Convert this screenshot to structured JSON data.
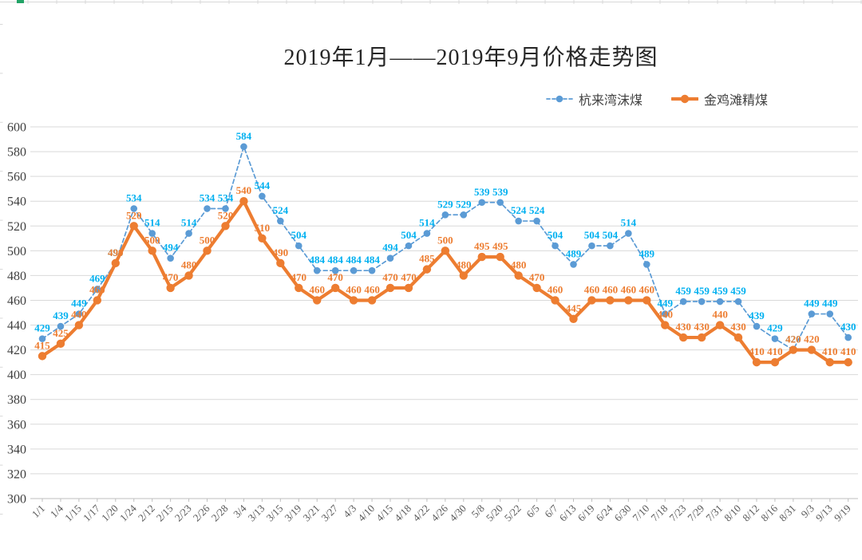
{
  "page": {
    "title": "2019年1月——2019年9月价格走势图"
  },
  "chart_data": {
    "type": "line",
    "title": "2019年1月——2019年9月价格走势图",
    "xlabel": "",
    "ylabel": "",
    "ylim": [
      300,
      600
    ],
    "ytick_step": 20,
    "yticks": [
      300,
      320,
      340,
      360,
      380,
      400,
      420,
      440,
      460,
      480,
      500,
      520,
      540,
      560,
      580,
      600
    ],
    "grid": true,
    "data_labels": true,
    "legend_position": "top-right",
    "categories": [
      "1/1",
      "1/4",
      "1/15",
      "1/17",
      "1/20",
      "1/24",
      "2/12",
      "2/15",
      "2/23",
      "2/26",
      "2/28",
      "3/4",
      "3/13",
      "3/15",
      "3/19",
      "3/21",
      "3/27",
      "4/3",
      "4/10",
      "4/15",
      "4/18",
      "4/22",
      "4/26",
      "4/30",
      "5/8",
      "5/20",
      "5/22",
      "6/5",
      "6/7",
      "6/13",
      "6/19",
      "6/24",
      "6/30",
      "7/10",
      "7/18",
      "7/23",
      "7/29",
      "7/31",
      "8/10",
      "8/12",
      "8/16",
      "8/31",
      "9/3",
      "9/13",
      "9/19"
    ],
    "series": [
      {
        "name": "杭来湾沫煤",
        "style": "dashed",
        "color": "#5B9BD5",
        "label_color": "#00B0F0",
        "values": [
          429,
          439,
          449,
          469,
          490,
          534,
          514,
          494,
          514,
          534,
          534,
          584,
          544,
          524,
          504,
          484,
          484,
          484,
          484,
          494,
          504,
          514,
          529,
          529,
          539,
          539,
          524,
          524,
          504,
          489,
          504,
          504,
          514,
          489,
          449,
          459,
          459,
          459,
          459,
          439,
          429,
          420,
          449,
          449,
          430
        ]
      },
      {
        "name": "金鸡滩精煤",
        "style": "solid",
        "color": "#ED7D31",
        "label_color": "#ED7D31",
        "values": [
          415,
          425,
          440,
          460,
          490,
          520,
          500,
          470,
          480,
          500,
          520,
          540,
          510,
          490,
          470,
          460,
          470,
          460,
          460,
          470,
          470,
          485,
          500,
          480,
          495,
          495,
          480,
          470,
          460,
          445,
          460,
          460,
          460,
          460,
          440,
          430,
          430,
          440,
          430,
          410,
          410,
          420,
          420,
          410,
          410
        ]
      }
    ],
    "colors": {
      "gridline": "#D9D9D9",
      "axis_line": "#BFBFBF",
      "spreadsheet_edge": "#D8D8D8",
      "spreadsheet_accent_green": "#21A366"
    }
  }
}
